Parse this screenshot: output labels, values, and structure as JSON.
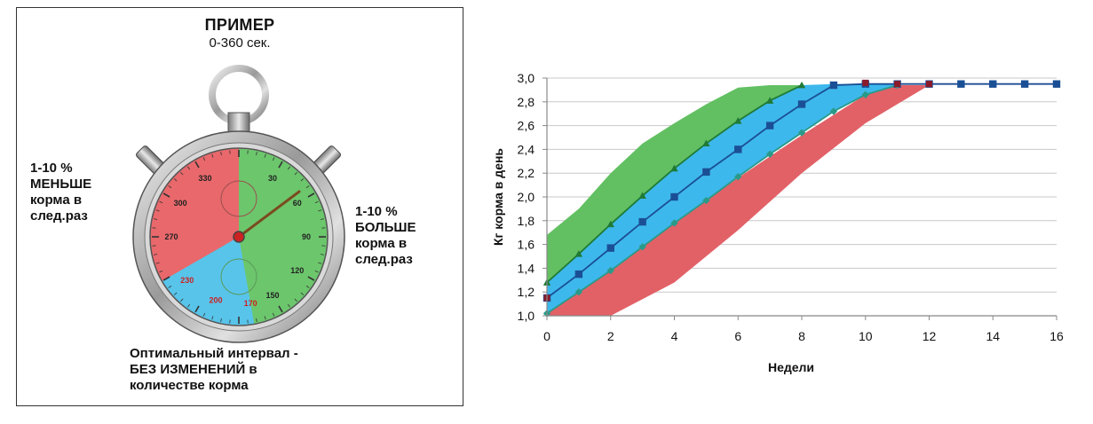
{
  "example": {
    "title": "ПРИМЕР",
    "subtitle": "0-360 сек.",
    "note_less": "1-10 %\nМЕНЬШЕ\nкорма в\nслед.раз",
    "note_more": "1-10 %\nБОЛЬШЕ\nкорма в\nслед.раз",
    "note_optimal": "Оптимальный интервал -\nБЕЗ ИЗМЕНЕНИЙ в\nколичестве корма",
    "dial_labels": [
      {
        "text": "330",
        "angle": 330,
        "color": "#222222"
      },
      {
        "text": "30",
        "angle": 30,
        "color": "#222222"
      },
      {
        "text": "60",
        "angle": 60,
        "color": "#222222"
      },
      {
        "text": "300",
        "angle": 300,
        "color": "#222222"
      },
      {
        "text": "270",
        "angle": 270,
        "color": "#222222"
      },
      {
        "text": "90",
        "angle": 90,
        "color": "#222222"
      },
      {
        "text": "120",
        "angle": 120,
        "color": "#222222"
      },
      {
        "text": "150",
        "angle": 150,
        "color": "#222222"
      },
      {
        "text": "170",
        "angle": 170,
        "color": "#cc2222"
      },
      {
        "text": "200",
        "angle": 200,
        "color": "#cc2222"
      },
      {
        "text": "230",
        "angle": 230,
        "color": "#cc2222"
      }
    ],
    "zones": {
      "less": [
        180,
        360
      ],
      "optimal": [
        170,
        240
      ],
      "more": [
        0,
        180
      ]
    },
    "colors": {
      "less": "#e8686b",
      "optimal": "#58c4ea",
      "more": "#6cc66c"
    }
  },
  "chart_data": {
    "type": "line",
    "xlabel": "Недели",
    "ylabel": "Кг корма в день",
    "xlim": [
      0,
      16
    ],
    "ylim": [
      1.0,
      3.0
    ],
    "xticks": [
      0,
      2,
      4,
      6,
      8,
      10,
      12,
      14,
      16
    ],
    "yticks": [
      "1,0",
      "1,2",
      "1,4",
      "1,6",
      "1,8",
      "2,0",
      "2,2",
      "2,4",
      "2,6",
      "2,8",
      "3,0"
    ],
    "ytick_values": [
      1.0,
      1.2,
      1.4,
      1.6,
      1.8,
      2.0,
      2.2,
      2.4,
      2.6,
      2.8,
      3.0
    ],
    "grid": true,
    "bands": [
      {
        "color": "#e26167",
        "upper": [
          [
            0,
            1.02
          ],
          [
            2,
            1.38
          ],
          [
            4,
            1.78
          ],
          [
            6,
            2.16
          ],
          [
            8,
            2.52
          ],
          [
            10,
            2.86
          ],
          [
            11,
            2.94
          ]
        ],
        "lower": [
          [
            0,
            1.0
          ],
          [
            2,
            1.0
          ],
          [
            4,
            1.28
          ],
          [
            6,
            1.72
          ],
          [
            8,
            2.2
          ],
          [
            10,
            2.62
          ],
          [
            12,
            2.94
          ]
        ]
      },
      {
        "color": "#62c062",
        "upper": [
          [
            0,
            1.68
          ],
          [
            1,
            1.9
          ],
          [
            2,
            2.2
          ],
          [
            3,
            2.45
          ],
          [
            4,
            2.62
          ],
          [
            5,
            2.78
          ],
          [
            6,
            2.92
          ],
          [
            7,
            2.94
          ],
          [
            8,
            2.94
          ]
        ],
        "lower": [
          [
            0,
            1.15
          ],
          [
            1,
            1.35
          ],
          [
            2,
            1.57
          ],
          [
            3,
            1.79
          ],
          [
            4,
            2.0
          ],
          [
            5,
            2.21
          ],
          [
            6,
            2.4
          ],
          [
            7,
            2.6
          ],
          [
            8,
            2.78
          ],
          [
            9,
            2.94
          ]
        ]
      },
      {
        "color": "#3db8ec",
        "upper": [
          [
            0,
            1.28
          ],
          [
            1,
            1.52
          ],
          [
            2,
            1.77
          ],
          [
            3,
            2.01
          ],
          [
            4,
            2.24
          ],
          [
            5,
            2.45
          ],
          [
            6,
            2.64
          ],
          [
            7,
            2.81
          ],
          [
            8,
            2.94
          ],
          [
            9,
            2.95
          ],
          [
            10,
            2.95
          ],
          [
            11,
            2.95
          ]
        ],
        "lower": [
          [
            0,
            1.02
          ],
          [
            1,
            1.2
          ],
          [
            2,
            1.38
          ],
          [
            3,
            1.58
          ],
          [
            4,
            1.78
          ],
          [
            5,
            1.97
          ],
          [
            6,
            2.17
          ],
          [
            7,
            2.36
          ],
          [
            8,
            2.54
          ],
          [
            9,
            2.72
          ],
          [
            10,
            2.86
          ],
          [
            11,
            2.94
          ]
        ]
      }
    ],
    "series": [
      {
        "marker": "triangle",
        "color": "#1f7a35",
        "points": [
          [
            0,
            1.28
          ],
          [
            1,
            1.52
          ],
          [
            2,
            1.77
          ],
          [
            3,
            2.01
          ],
          [
            4,
            2.24
          ],
          [
            5,
            2.45
          ],
          [
            6,
            2.64
          ],
          [
            7,
            2.81
          ],
          [
            8,
            2.94
          ]
        ]
      },
      {
        "marker": "square",
        "color": "#1b4f95",
        "points": [
          [
            0,
            1.15
          ],
          [
            1,
            1.35
          ],
          [
            2,
            1.57
          ],
          [
            3,
            1.79
          ],
          [
            4,
            2.0
          ],
          [
            5,
            2.21
          ],
          [
            6,
            2.4
          ],
          [
            7,
            2.6
          ],
          [
            8,
            2.78
          ],
          [
            9,
            2.94
          ],
          [
            10,
            2.95
          ],
          [
            11,
            2.95
          ],
          [
            12,
            2.95
          ],
          [
            13,
            2.95
          ],
          [
            14,
            2.95
          ],
          [
            15,
            2.95
          ],
          [
            16,
            2.95
          ]
        ]
      },
      {
        "marker": "diamond",
        "color": "#2a9a88",
        "points": [
          [
            0,
            1.02
          ],
          [
            1,
            1.2
          ],
          [
            2,
            1.38
          ],
          [
            3,
            1.58
          ],
          [
            4,
            1.78
          ],
          [
            5,
            1.97
          ],
          [
            6,
            2.17
          ],
          [
            7,
            2.36
          ],
          [
            8,
            2.54
          ],
          [
            9,
            2.72
          ],
          [
            10,
            2.86
          ],
          [
            11,
            2.94
          ]
        ]
      }
    ],
    "extra_markers": [
      {
        "x": 0,
        "y": 1.15,
        "color": "#8b1a2a"
      },
      {
        "x": 10,
        "y": 2.96,
        "color": "#8b1a2a"
      },
      {
        "x": 11,
        "y": 2.95,
        "color": "#8b1a2a"
      },
      {
        "x": 12,
        "y": 2.95,
        "color": "#8b1a2a"
      }
    ]
  }
}
